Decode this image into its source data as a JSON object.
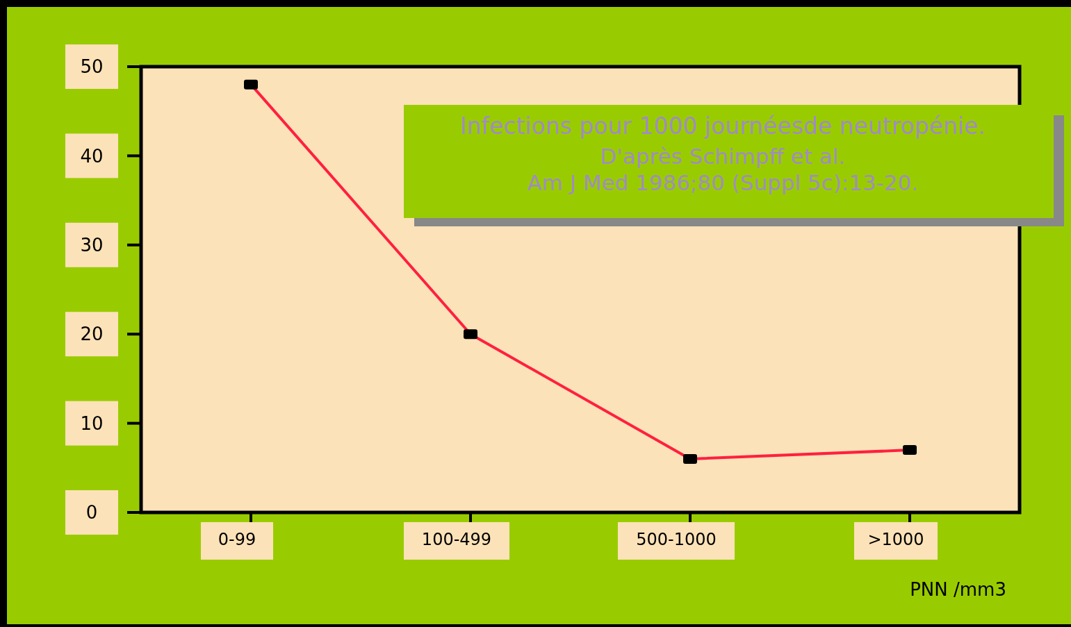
{
  "chart_data": {
    "type": "line",
    "title": "Infections pour 1000 journéesde neutropénie.",
    "annotations": [
      "D'après Schimpff et al.",
      "Am J Med 1986;80 (Suppl 5c):13-20."
    ],
    "xlabel": "PNN /mm3",
    "categories": [
      "0-99",
      "100-499",
      "500-1000",
      ">1000"
    ],
    "series": [
      {
        "color": "#ff2040",
        "values": [
          48,
          20,
          6,
          7
        ]
      }
    ],
    "ylim": [
      0,
      50
    ],
    "yticks": [
      0,
      10,
      20,
      30,
      40,
      50
    ],
    "grid": false,
    "marker": "square",
    "line_style": "solid"
  }
}
